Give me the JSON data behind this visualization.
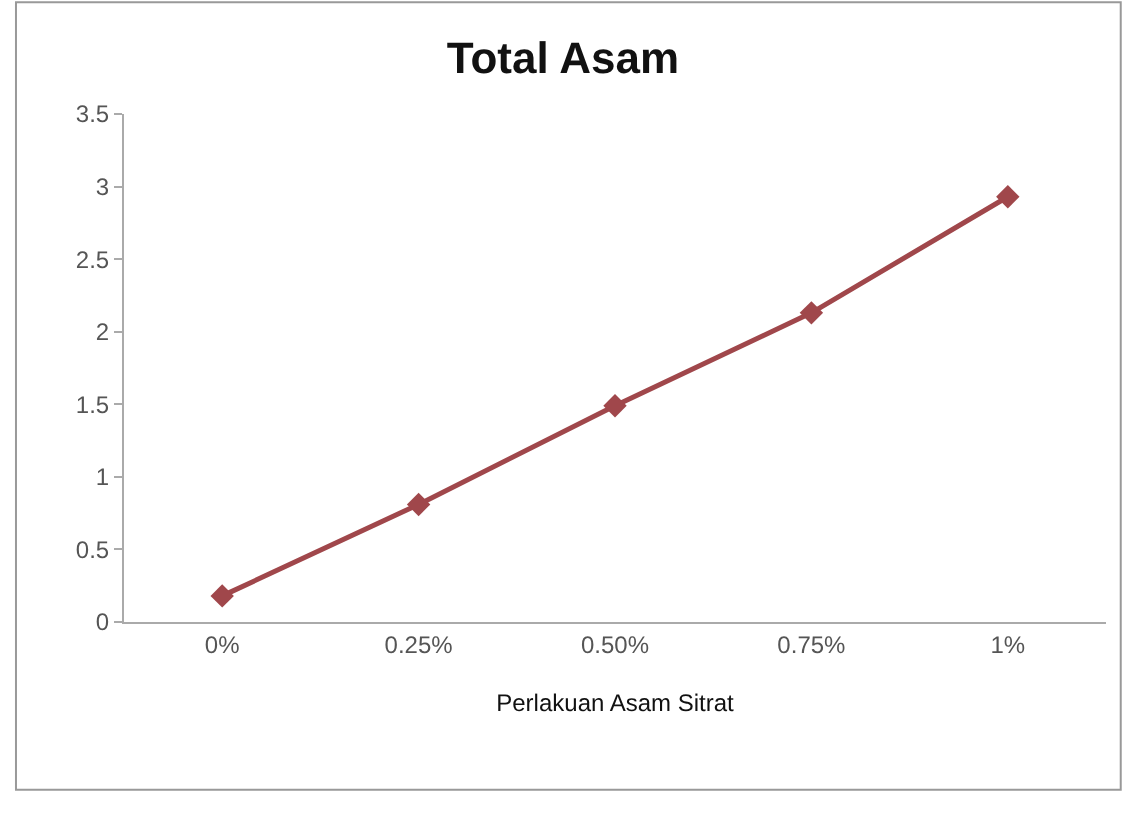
{
  "chart_data": {
    "type": "line",
    "title": "Total Asam",
    "xlabel": "Perlakuan Asam Sitrat",
    "categories": [
      "0%",
      "0.25%",
      "0.50%",
      "0.75%",
      "1%"
    ],
    "series": [
      {
        "color": "#a0474b",
        "values": [
          0.18,
          0.81,
          1.49,
          2.13,
          2.93
        ]
      }
    ],
    "ylim": [
      0,
      3.5
    ],
    "yticks": [
      0,
      0.5,
      1,
      1.5,
      2,
      2.5,
      3,
      3.5
    ],
    "marker": "diamond",
    "line_style": "solid"
  }
}
